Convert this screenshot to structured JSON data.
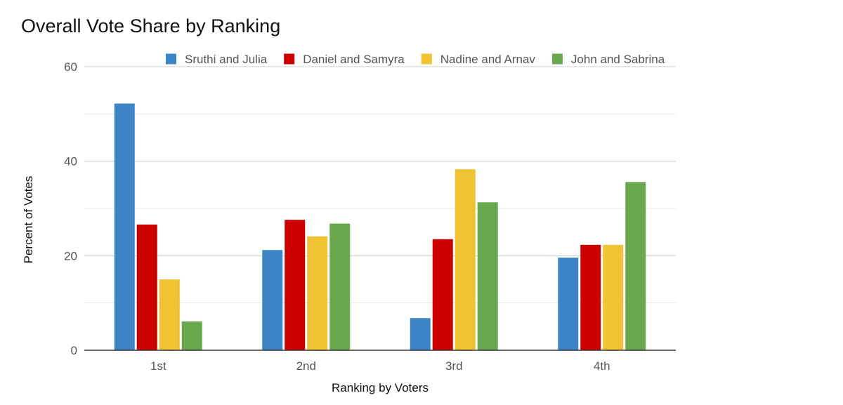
{
  "chart_data": {
    "type": "bar",
    "title": "Overall Vote Share by Ranking",
    "xlabel": "Ranking by Voters",
    "ylabel": "Percent of Votes",
    "categories": [
      "1st",
      "2nd",
      "3rd",
      "4th"
    ],
    "series": [
      {
        "name": "Sruthi and Julia",
        "color": "#3d85c6",
        "values": [
          52.2,
          21.2,
          6.8,
          19.6
        ]
      },
      {
        "name": "Daniel and Samyra",
        "color": "#cc0000",
        "values": [
          26.6,
          27.6,
          23.5,
          22.3
        ]
      },
      {
        "name": "Nadine and Arnav",
        "color": "#f1c232",
        "values": [
          15.0,
          24.1,
          38.3,
          22.3
        ]
      },
      {
        "name": "John and Sabrina",
        "color": "#6aa84f",
        "values": [
          6.1,
          26.8,
          31.3,
          35.6
        ]
      }
    ],
    "ylim": [
      0,
      60
    ],
    "yticks": [
      "0",
      "20",
      "40",
      "60"
    ],
    "minor_gridlines": true,
    "grid": true,
    "legend_position": "top"
  }
}
